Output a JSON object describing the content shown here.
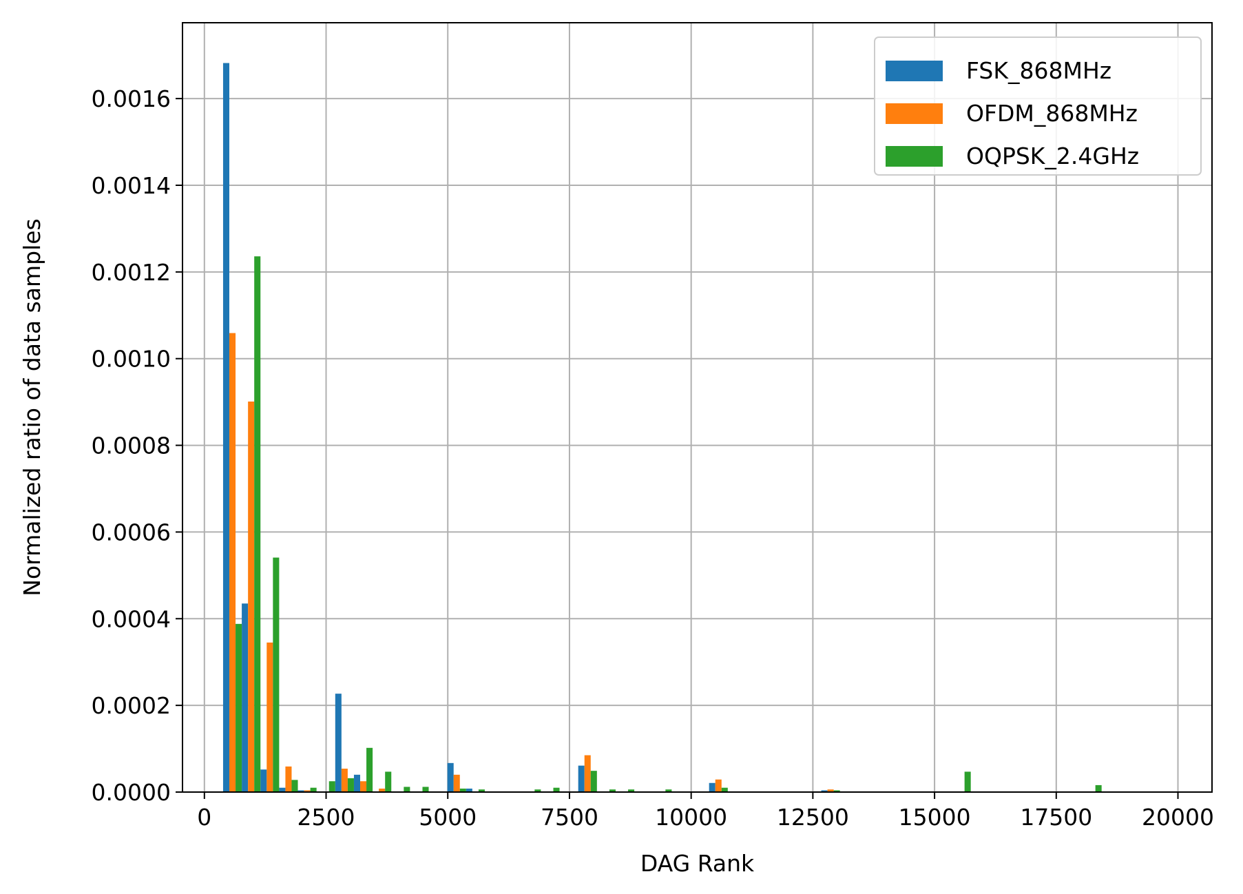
{
  "chart_data": {
    "type": "bar",
    "title": "",
    "xlabel": "DAG Rank",
    "ylabel": "Normalized ratio of data samples",
    "xlim": [
      -450,
      20700
    ],
    "ylim": [
      0,
      0.001775
    ],
    "xticks": [
      0,
      2500,
      5000,
      7500,
      10000,
      12500,
      15000,
      17500,
      20000
    ],
    "xtick_labels": [
      "0",
      "2500",
      "5000",
      "7500",
      "10000",
      "12500",
      "15000",
      "17500",
      "20000"
    ],
    "yticks": [
      0,
      0.0002,
      0.0004,
      0.0006,
      0.0008,
      0.001,
      0.0012,
      0.0014,
      0.0016
    ],
    "ytick_labels": [
      "0.0000",
      "0.0002",
      "0.0004",
      "0.0006",
      "0.0008",
      "0.0010",
      "0.0012",
      "0.0014",
      "0.0016"
    ],
    "grid": true,
    "legend_position": "top-right",
    "bin_edges": [
      0,
      384,
      768,
      1152,
      1536,
      1920,
      2304,
      2688,
      3072,
      3456,
      3840,
      4224,
      4608,
      4992,
      5376,
      5760,
      6144,
      6528,
      6912,
      7296,
      7680,
      8064,
      8448,
      8832,
      9216,
      9600,
      9984,
      10368,
      10752,
      11136,
      11520,
      11904,
      12288,
      12672,
      13056,
      13440,
      13824,
      14208,
      14592,
      14976,
      15360,
      15744,
      16128,
      16512,
      16896,
      17280,
      17664,
      18048,
      18432,
      18816,
      19200,
      19584,
      19968
    ],
    "series": [
      {
        "name": "FSK_868MHz",
        "color": "#1f77b4",
        "values": [
          0,
          0.001682,
          0.000435,
          5.2e-05,
          1e-05,
          4e-06,
          0,
          0.000227,
          4e-05,
          0,
          0,
          0,
          0,
          6.7e-05,
          8e-06,
          0,
          0,
          0,
          0,
          0,
          6.1e-05,
          0,
          0,
          0,
          0,
          0,
          0,
          2.1e-05,
          0,
          0,
          0,
          0,
          0,
          4e-06,
          0,
          0,
          0,
          0,
          0,
          0,
          0,
          0,
          0,
          0,
          0,
          0,
          0,
          0,
          0,
          0,
          0,
          0
        ]
      },
      {
        "name": "OFDM_868MHz",
        "color": "#ff7f0e",
        "values": [
          0,
          0.001059,
          0.000901,
          0.000345,
          5.9e-05,
          4e-06,
          0,
          5.4e-05,
          2.5e-05,
          8e-06,
          0,
          0,
          0,
          4e-05,
          0,
          0,
          0,
          0,
          0,
          0,
          8.5e-05,
          0,
          0,
          0,
          0,
          0,
          0,
          2.9e-05,
          0,
          0,
          0,
          0,
          0,
          6e-06,
          0,
          0,
          0,
          0,
          0,
          0,
          0,
          0,
          0,
          0,
          0,
          0,
          0,
          0,
          0,
          0,
          0,
          0
        ]
      },
      {
        "name": "OQPSK_2.4GHz",
        "color": "#2ca02c",
        "values": [
          0,
          0.000388,
          0.001236,
          0.000541,
          2.8e-05,
          1e-05,
          2.5e-05,
          3.2e-05,
          0.000102,
          4.7e-05,
          1.2e-05,
          1.2e-05,
          0,
          8e-06,
          6e-06,
          0,
          0,
          6e-06,
          1e-05,
          0,
          4.9e-05,
          6e-06,
          6e-06,
          0,
          6e-06,
          0,
          0,
          1e-05,
          0,
          0,
          0,
          0,
          0,
          4e-06,
          0,
          0,
          0,
          0,
          0,
          0,
          4.7e-05,
          0,
          0,
          0,
          0,
          0,
          0,
          1.6e-05,
          0,
          0,
          0,
          0
        ]
      }
    ]
  }
}
